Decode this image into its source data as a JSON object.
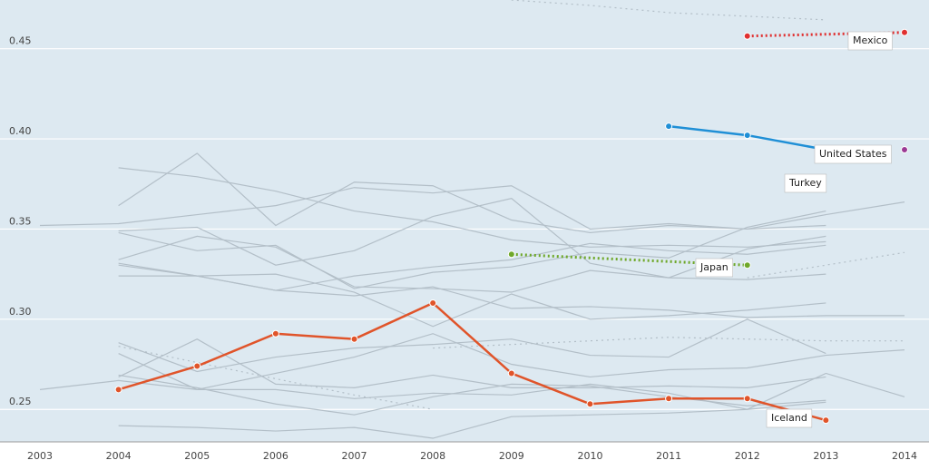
{
  "chart_data": {
    "type": "line",
    "x": [
      2003,
      2004,
      2005,
      2006,
      2007,
      2008,
      2009,
      2010,
      2011,
      2012,
      2013,
      2014
    ],
    "xlim": [
      2003,
      2014
    ],
    "xticks": [
      2003,
      2004,
      2005,
      2006,
      2007,
      2008,
      2009,
      2010,
      2011,
      2012,
      2013,
      2014
    ],
    "ylim": [
      0.232,
      0.477
    ],
    "yticks": [
      {
        "value": 0.25,
        "label": "0.25"
      },
      {
        "value": 0.3,
        "label": "0.30"
      },
      {
        "value": 0.35,
        "label": "0.35"
      },
      {
        "value": 0.4,
        "label": "0.40"
      },
      {
        "value": 0.45,
        "label": "0.45"
      }
    ],
    "grid": true,
    "series": [
      {
        "color": "#b3bfc8",
        "values": [
          0.352,
          0.353,
          0.358,
          0.363,
          0.373,
          0.37,
          0.374,
          0.35,
          0.353,
          0.35,
          0.352,
          null
        ]
      },
      {
        "color": "#b3bfc8",
        "values": [
          null,
          0.384,
          0.379,
          0.371,
          0.36,
          0.354,
          0.344,
          0.34,
          0.341,
          0.34,
          0.343,
          null
        ]
      },
      {
        "color": "#b3bfc8",
        "values": [
          null,
          0.363,
          0.392,
          0.352,
          0.376,
          0.374,
          0.355,
          0.348,
          0.352,
          0.35,
          0.358,
          0.365
        ]
      },
      {
        "color": "#b3bfc8",
        "values": [
          null,
          0.349,
          0.351,
          0.33,
          0.338,
          0.357,
          0.367,
          0.331,
          0.323,
          0.339,
          0.346,
          null
        ]
      },
      {
        "color": "#b3bfc8",
        "values": [
          null,
          0.348,
          0.338,
          0.341,
          0.317,
          0.326,
          0.329,
          0.337,
          0.334,
          0.351,
          0.36,
          null
        ]
      },
      {
        "color": "#b3bfc8",
        "values": [
          null,
          0.333,
          0.346,
          0.34,
          0.318,
          0.317,
          0.315,
          0.327,
          0.323,
          0.322,
          0.325,
          null
        ]
      },
      {
        "color": "#b3bfc8",
        "values": [
          null,
          0.331,
          0.324,
          0.316,
          0.324,
          0.329,
          0.333,
          0.342,
          0.338,
          0.336,
          0.341,
          null
        ]
      },
      {
        "color": "#b3bfc8",
        "values": [
          null,
          0.324,
          0.324,
          0.325,
          0.315,
          0.296,
          0.314,
          0.3,
          0.302,
          0.305,
          0.309,
          null
        ]
      },
      {
        "color": "#b3bfc8",
        "values": [
          null,
          0.33,
          0.324,
          0.316,
          0.313,
          0.318,
          0.306,
          0.307,
          0.305,
          0.301,
          0.302,
          0.302
        ]
      },
      {
        "color": "#b3bfc8",
        "values": [
          null,
          0.287,
          0.271,
          0.279,
          0.284,
          0.286,
          0.289,
          0.28,
          0.279,
          0.3,
          0.281,
          null
        ]
      },
      {
        "color": "#b3bfc8",
        "values": [
          null,
          0.281,
          0.261,
          0.27,
          0.279,
          0.292,
          0.275,
          0.268,
          0.272,
          0.273,
          0.28,
          0.283
        ]
      },
      {
        "color": "#b3bfc8",
        "values": [
          null,
          0.268,
          0.289,
          0.264,
          0.262,
          0.269,
          0.262,
          0.262,
          0.263,
          0.262,
          0.268,
          null
        ]
      },
      {
        "color": "#b3bfc8",
        "values": [
          0.261,
          0.266,
          0.261,
          0.261,
          0.256,
          0.259,
          0.258,
          0.264,
          0.259,
          0.25,
          0.27,
          0.257
        ]
      },
      {
        "color": "#b3bfc8",
        "values": [
          null,
          0.269,
          0.262,
          0.253,
          0.247,
          0.257,
          0.264,
          0.263,
          0.257,
          0.252,
          0.255,
          null
        ]
      },
      {
        "color": "#b3bfc8",
        "values": [
          null,
          0.241,
          0.24,
          0.238,
          0.24,
          0.234,
          0.246,
          0.247,
          0.248,
          0.25,
          0.254,
          null
        ]
      },
      {
        "color": "#b3bfc8",
        "dotted": true,
        "values": [
          null,
          null,
          null,
          null,
          null,
          null,
          0.477,
          0.474,
          0.47,
          0.468,
          0.466,
          null
        ]
      },
      {
        "color": "#b3bfc8",
        "dotted": true,
        "values": [
          null,
          null,
          null,
          null,
          null,
          null,
          null,
          null,
          null,
          0.323,
          0.33,
          0.337
        ]
      },
      {
        "color": "#b3bfc8",
        "dotted": true,
        "values": [
          null,
          0.285,
          0.276,
          0.267,
          0.258,
          0.25,
          null,
          null,
          null,
          null,
          null,
          null
        ]
      },
      {
        "color": "#b3bfc8",
        "dotted": true,
        "values": [
          null,
          null,
          null,
          null,
          null,
          0.284,
          0.286,
          0.288,
          0.29,
          0.289,
          0.288,
          0.288
        ]
      },
      {
        "name": "Mexico",
        "color": "#e03030",
        "dotted": true,
        "values": [
          null,
          null,
          null,
          null,
          null,
          null,
          null,
          null,
          null,
          0.457,
          0.458,
          0.459
        ]
      },
      {
        "name": "United States",
        "color": "#1f8fd6",
        "values": [
          null,
          null,
          null,
          null,
          null,
          null,
          null,
          null,
          0.407,
          0.402,
          0.394,
          null
        ]
      },
      {
        "name": "Turkey",
        "color": "#9b3a94",
        "values": [
          null,
          null,
          null,
          null,
          null,
          null,
          null,
          null,
          null,
          null,
          null,
          0.394
        ]
      },
      {
        "name": "Japan",
        "color": "#6fa82a",
        "dotted": true,
        "values": [
          null,
          null,
          null,
          null,
          null,
          null,
          0.336,
          0.334,
          0.332,
          0.33,
          null,
          null
        ]
      },
      {
        "name": "Iceland",
        "color": "#e0542a",
        "values": [
          null,
          0.261,
          0.274,
          0.292,
          0.289,
          0.309,
          0.27,
          0.253,
          0.256,
          0.256,
          0.244,
          null
        ]
      }
    ]
  }
}
